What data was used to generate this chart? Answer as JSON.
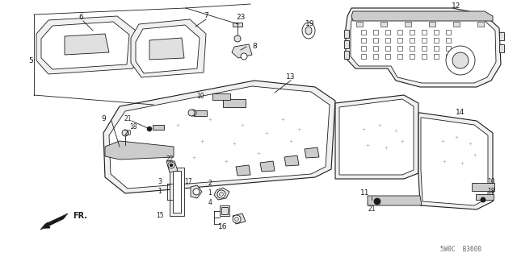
{
  "bg_color": "#ffffff",
  "line_color": "#1a1a1a",
  "fig_width": 6.4,
  "fig_height": 3.19,
  "dpi": 100,
  "watermark": "5W0C  B3600",
  "label_fontsize": 6.5,
  "small_fontsize": 5.5
}
